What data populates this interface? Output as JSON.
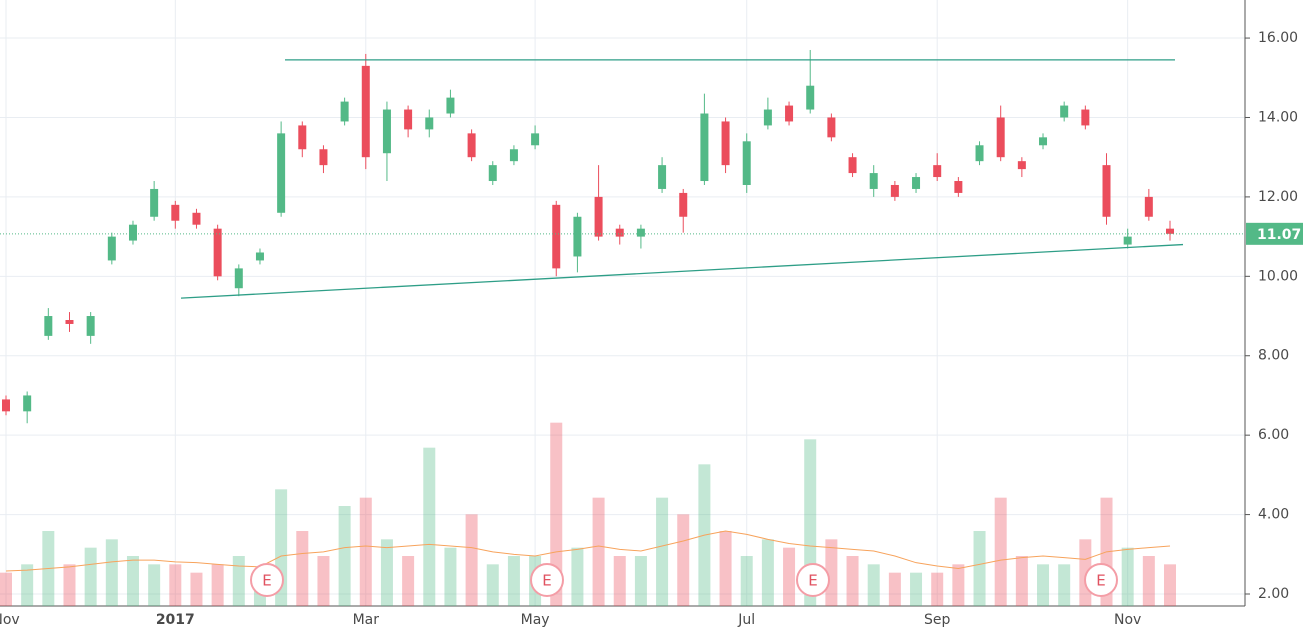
{
  "chart_data": {
    "type": "candlestick",
    "categories": [
      "Nov",
      null,
      null,
      null,
      null,
      null,
      null,
      null,
      "2017",
      null,
      null,
      null,
      null,
      null,
      null,
      null,
      null,
      "Mar",
      null,
      null,
      null,
      null,
      null,
      null,
      null,
      "May",
      null,
      null,
      null,
      null,
      null,
      null,
      null,
      null,
      null,
      "Jul",
      null,
      null,
      null,
      null,
      null,
      null,
      null,
      null,
      "Sep",
      null,
      null,
      null,
      null,
      null,
      null,
      null,
      null,
      "Nov",
      null,
      null
    ],
    "open": [
      6.9,
      6.6,
      8.5,
      8.9,
      8.5,
      10.4,
      10.9,
      11.5,
      11.8,
      11.6,
      11.2,
      9.7,
      10.4,
      11.6,
      13.8,
      13.2,
      13.9,
      15.3,
      13.1,
      14.2,
      13.7,
      14.1,
      13.6,
      12.4,
      12.9,
      13.3,
      11.8,
      10.5,
      12.0,
      11.2,
      11.0,
      12.2,
      12.1,
      12.4,
      13.9,
      12.3,
      13.8,
      14.3,
      14.2,
      14.0,
      13.0,
      12.2,
      12.3,
      12.2,
      12.8,
      12.4,
      12.9,
      14.0,
      12.9,
      13.3,
      14.0,
      14.2,
      12.8,
      10.8,
      12.0,
      11.2
    ],
    "high": [
      7.0,
      7.1,
      9.2,
      9.1,
      9.1,
      11.1,
      11.4,
      12.4,
      11.9,
      11.7,
      11.3,
      10.3,
      10.7,
      13.9,
      13.9,
      13.3,
      14.5,
      15.6,
      14.4,
      14.3,
      14.2,
      14.7,
      13.7,
      12.9,
      13.3,
      13.8,
      11.9,
      11.6,
      12.8,
      11.3,
      11.3,
      13.0,
      12.2,
      14.6,
      14.0,
      13.6,
      14.5,
      14.4,
      15.7,
      14.1,
      13.1,
      12.8,
      12.4,
      12.6,
      13.1,
      12.5,
      13.4,
      14.3,
      13.0,
      13.6,
      14.4,
      14.3,
      13.1,
      11.2,
      12.2,
      11.4
    ],
    "low": [
      6.5,
      6.3,
      8.4,
      8.6,
      8.3,
      10.3,
      10.8,
      11.4,
      11.2,
      11.2,
      9.9,
      9.5,
      10.3,
      11.5,
      13.0,
      12.6,
      13.8,
      12.7,
      12.4,
      13.5,
      13.5,
      14.0,
      12.9,
      12.3,
      12.8,
      13.2,
      10.0,
      10.1,
      10.9,
      10.8,
      10.7,
      12.1,
      11.1,
      12.3,
      12.6,
      12.1,
      13.7,
      13.8,
      14.1,
      13.4,
      12.5,
      12.0,
      11.9,
      12.1,
      12.4,
      12.0,
      12.8,
      12.9,
      12.5,
      13.2,
      13.9,
      13.7,
      11.3,
      10.7,
      11.4,
      10.9
    ],
    "close": [
      6.6,
      7.0,
      9.0,
      8.8,
      9.0,
      11.0,
      11.3,
      12.2,
      11.4,
      11.3,
      10.0,
      10.2,
      10.6,
      13.6,
      13.2,
      12.8,
      14.4,
      13.0,
      14.2,
      13.7,
      14.0,
      14.5,
      13.0,
      12.8,
      13.2,
      13.6,
      10.2,
      11.5,
      11.0,
      11.0,
      11.2,
      12.8,
      11.5,
      14.1,
      12.8,
      13.4,
      14.2,
      13.9,
      14.8,
      13.5,
      12.6,
      12.6,
      12.0,
      12.5,
      12.5,
      12.1,
      13.3,
      13.0,
      12.7,
      13.5,
      14.3,
      13.8,
      11.5,
      11.0,
      11.5,
      11.07
    ],
    "volume": [
      0.4,
      0.5,
      0.9,
      0.5,
      0.7,
      0.8,
      0.6,
      0.5,
      0.5,
      0.4,
      0.5,
      0.6,
      0.4,
      1.4,
      0.9,
      0.6,
      1.2,
      1.3,
      0.8,
      0.6,
      1.9,
      0.7,
      1.1,
      0.5,
      0.6,
      0.6,
      2.2,
      0.7,
      1.3,
      0.6,
      0.6,
      1.3,
      1.1,
      1.7,
      0.9,
      0.6,
      0.8,
      0.7,
      2.0,
      0.8,
      0.6,
      0.5,
      0.4,
      0.4,
      0.4,
      0.5,
      0.9,
      1.3,
      0.6,
      0.5,
      0.5,
      0.8,
      1.3,
      0.7,
      0.6,
      0.5
    ],
    "volume_ma": [
      0.42,
      0.43,
      0.45,
      0.47,
      0.5,
      0.53,
      0.55,
      0.55,
      0.53,
      0.52,
      0.5,
      0.48,
      0.47,
      0.6,
      0.63,
      0.65,
      0.7,
      0.72,
      0.7,
      0.72,
      0.74,
      0.72,
      0.7,
      0.65,
      0.62,
      0.6,
      0.65,
      0.68,
      0.72,
      0.68,
      0.66,
      0.72,
      0.78,
      0.85,
      0.9,
      0.86,
      0.8,
      0.75,
      0.72,
      0.7,
      0.68,
      0.66,
      0.6,
      0.52,
      0.48,
      0.45,
      0.5,
      0.55,
      0.58,
      0.6,
      0.58,
      0.56,
      0.65,
      0.68,
      0.7,
      0.72
    ],
    "volume_ylim": [
      0,
      3
    ],
    "up_color": "#53b987",
    "down_color": "#eb4d5c",
    "volume_ma_color": "#f7a35c",
    "ylim": [
      1.8,
      17.3
    ],
    "yticks": [
      {
        "value": 2,
        "label": "2.00"
      },
      {
        "value": 4,
        "label": "4.00"
      },
      {
        "value": 6,
        "label": "6.00"
      },
      {
        "value": 8,
        "label": "8.00"
      },
      {
        "value": 10,
        "label": "10.00"
      },
      {
        "value": 12,
        "label": "12.00"
      },
      {
        "value": 14,
        "label": "14.00"
      },
      {
        "value": 16,
        "label": "16.00"
      }
    ],
    "last_price": 11.07,
    "trend_lines": [
      {
        "values": [
          15.45,
          15.45
        ]
      },
      {
        "values": [
          9.45,
          10.8
        ]
      }
    ],
    "earnings": [
      "E",
      "E",
      "E",
      "E"
    ],
    "grid": true
  }
}
